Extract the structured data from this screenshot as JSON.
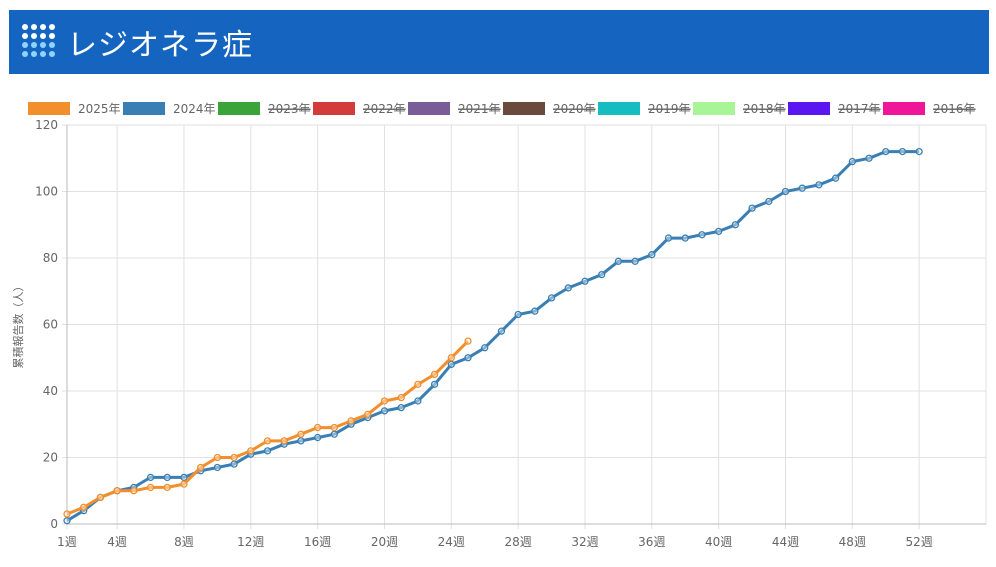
{
  "header": {
    "title": "レジオネラ症",
    "logo_icon": "grid-dots-icon"
  },
  "colors": {
    "header_bg": "#1565c0"
  },
  "chart_data": {
    "type": "line",
    "ylabel": "累積報告数（人）",
    "xlabel": "",
    "ylim": [
      0,
      120
    ],
    "yticks": [
      0,
      20,
      40,
      60,
      80,
      100,
      120
    ],
    "xlim": [
      1,
      56
    ],
    "xtick_labels": [
      "1週",
      "4週",
      "8週",
      "12週",
      "16週",
      "20週",
      "24週",
      "28週",
      "32週",
      "36週",
      "40週",
      "44週",
      "48週",
      "52週"
    ],
    "xtick_weeks": [
      1,
      4,
      8,
      12,
      16,
      20,
      24,
      28,
      32,
      36,
      40,
      44,
      48,
      52
    ],
    "grid": true,
    "legend_position": "top",
    "series": [
      {
        "name": "2025年",
        "color": "#f28e2b",
        "hidden": false,
        "x": [
          1,
          2,
          3,
          4,
          5,
          6,
          7,
          8,
          9,
          10,
          11,
          12,
          13,
          14,
          15,
          16,
          17,
          18,
          19,
          20,
          21,
          22,
          23,
          24,
          25
        ],
        "values": [
          3,
          5,
          8,
          10,
          10,
          11,
          11,
          12,
          17,
          20,
          20,
          22,
          25,
          25,
          27,
          29,
          29,
          31,
          33,
          37,
          38,
          42,
          45,
          50,
          55
        ]
      },
      {
        "name": "2024年",
        "color": "#3a7fb4",
        "hidden": false,
        "x": [
          1,
          2,
          3,
          4,
          5,
          6,
          7,
          8,
          9,
          10,
          11,
          12,
          13,
          14,
          15,
          16,
          17,
          18,
          19,
          20,
          21,
          22,
          23,
          24,
          25,
          26,
          27,
          28,
          29,
          30,
          31,
          32,
          33,
          34,
          35,
          36,
          37,
          38,
          39,
          40,
          41,
          42,
          43,
          44,
          45,
          46,
          47,
          48,
          49,
          50,
          51,
          52
        ],
        "values": [
          1,
          4,
          8,
          10,
          11,
          14,
          14,
          14,
          16,
          17,
          18,
          21,
          22,
          24,
          25,
          26,
          27,
          30,
          32,
          34,
          35,
          37,
          42,
          48,
          50,
          53,
          58,
          63,
          64,
          68,
          71,
          73,
          75,
          79,
          79,
          81,
          86,
          86,
          87,
          88,
          90,
          95,
          97,
          100,
          101,
          102,
          104,
          109,
          110,
          112,
          112,
          112
        ]
      },
      {
        "name": "2023年",
        "color": "#3aa33a",
        "hidden": true,
        "x": [],
        "values": []
      },
      {
        "name": "2022年",
        "color": "#d43b3b",
        "hidden": true,
        "x": [],
        "values": []
      },
      {
        "name": "2021年",
        "color": "#7a5c99",
        "hidden": true,
        "x": [],
        "values": []
      },
      {
        "name": "2020年",
        "color": "#6b4a3e",
        "hidden": true,
        "x": [],
        "values": []
      },
      {
        "name": "2019年",
        "color": "#15bcc0",
        "hidden": true,
        "x": [],
        "values": []
      },
      {
        "name": "2018年",
        "color": "#a8f598",
        "hidden": true,
        "x": [],
        "values": []
      },
      {
        "name": "2017年",
        "color": "#5a16f0",
        "hidden": true,
        "x": [],
        "values": []
      },
      {
        "name": "2016年",
        "color": "#f0169a",
        "hidden": true,
        "x": [],
        "values": []
      }
    ]
  }
}
